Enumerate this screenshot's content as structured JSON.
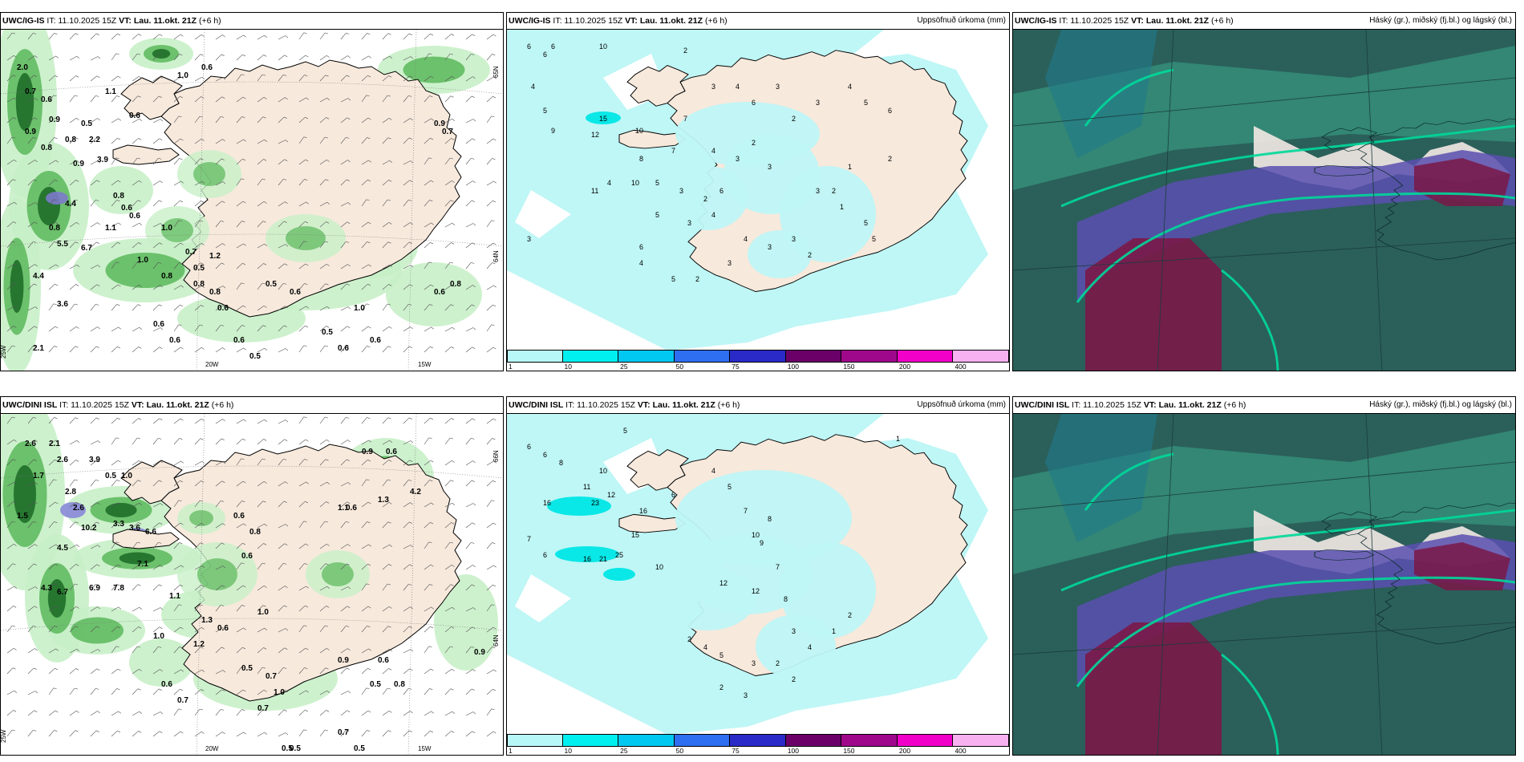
{
  "panels": [
    {
      "id": "p1",
      "model": "UWC/IG-IS",
      "it_label": "IT: 11.10.2025 15Z",
      "vt_prefix": "VT:",
      "vt_value": "Lau. 11.okt. 21Z",
      "lead": "(+6 h)",
      "right_title": "",
      "lon_labels": [
        "20W",
        "15W",
        "25W"
      ],
      "lat_labels": [
        "65N",
        "64N"
      ],
      "precip_values": [
        "2.0",
        "0.7",
        "0.6",
        "0.9",
        "0.9",
        "0.8",
        "0.8",
        "0.5",
        "2.2",
        "0.9",
        "3.9",
        "0.6",
        "0.8",
        "5.5",
        "6.7",
        "1.1",
        "4.4",
        "3.6",
        "2.1",
        "4.4",
        "0.8",
        "0.6",
        "0.6",
        "1.0",
        "0.8",
        "0.7",
        "0.6",
        "0.6",
        "1.2",
        "1.0",
        "0.5",
        "0.8",
        "0.8",
        "0.6",
        "0.5",
        "0.6",
        "1.0",
        "0.5",
        "0.6",
        "0.6",
        "0.6",
        "0.5",
        "0.9",
        "0.7",
        "1.0",
        "0.6",
        "0.6",
        "0.8",
        "1.1"
      ]
    },
    {
      "id": "p2",
      "model": "UWC/IG-IS",
      "it_label": "IT: 11.10.2025 15Z",
      "vt_prefix": "VT:",
      "vt_value": "Lau. 11.okt. 21Z",
      "lead": "(+6 h)",
      "right_title": "Uppsöfnuð úrkoma (mm)",
      "precip_values": [
        "6",
        "6",
        "6",
        "4",
        "10",
        "2",
        "5",
        "12",
        "15",
        "9",
        "10",
        "8",
        "7",
        "3",
        "4",
        "6",
        "3",
        "2",
        "3",
        "4",
        "5",
        "6",
        "7",
        "4",
        "3",
        "2",
        "3",
        "10",
        "11",
        "4",
        "5",
        "3",
        "2",
        "6",
        "5",
        "3",
        "4",
        "6",
        "4",
        "5",
        "2",
        "3",
        "4",
        "3",
        "3",
        "2",
        "1",
        "5",
        "5",
        "3",
        "2",
        "1",
        "2",
        "3"
      ]
    },
    {
      "id": "p3",
      "model": "UWC/IG-IS",
      "it_label": "IT: 11.10.2025 15Z",
      "vt_prefix": "VT:",
      "vt_value": "Lau. 11.okt. 21Z",
      "lead": "(+6 h)",
      "right_title": "Háský (gr.), miðský (fj.bl.) og lágský (bl.)"
    },
    {
      "id": "p4",
      "model": "UWC/DINI ISL",
      "it_label": "IT: 11.10.2025 15Z",
      "vt_prefix": "VT:",
      "vt_value": "Lau. 11.okt. 21Z",
      "lead": "(+6 h)",
      "right_title": "",
      "lon_labels": [
        "20W",
        "15W",
        "25W"
      ],
      "lat_labels": [
        "66N",
        "64N"
      ],
      "precip_values": [
        "2.6",
        "2.1",
        "2.6",
        "3.9",
        "0.5",
        "1.0",
        "1.7",
        "2.8",
        "1.5",
        "2.6",
        "10.2",
        "3.3",
        "3.6",
        "6.6",
        "4.5",
        "7.1",
        "4.3",
        "6.7",
        "6.9",
        "7.8",
        "0.9",
        "0.6",
        "1.3",
        "4.2",
        "1.1",
        "0.6",
        "0.8",
        "0.6",
        "0.6",
        "1.1",
        "1.3",
        "1.2",
        "0.6",
        "1.0",
        "1.0",
        "0.6",
        "0.7",
        "1.0",
        "0.7",
        "0.5",
        "0.9",
        "0.6",
        "0.8",
        "0.5",
        "0.7",
        "0.5",
        "0.5",
        "0.7",
        "0.5",
        "0.9"
      ]
    },
    {
      "id": "p5",
      "model": "UWC/DINI ISL",
      "it_label": "IT: 11.10.2025 15Z",
      "vt_prefix": "VT:",
      "vt_value": "Lau. 11.okt. 21Z",
      "lead": "(+6 h)",
      "right_title": "Uppsöfnuð úrkoma (mm)",
      "precip_values": [
        "5",
        "6",
        "6",
        "8",
        "11",
        "10",
        "16",
        "23",
        "12",
        "16",
        "15",
        "7",
        "6",
        "16",
        "21",
        "25",
        "10",
        "12",
        "10",
        "6",
        "4",
        "5",
        "7",
        "8",
        "12",
        "9",
        "7",
        "8",
        "2",
        "4",
        "5",
        "3",
        "2",
        "3",
        "4",
        "1",
        "2",
        "2",
        "3",
        "2",
        "1"
      ]
    },
    {
      "id": "p6",
      "model": "UWC/DINI ISL",
      "it_label": "IT: 11.10.2025 15Z",
      "vt_prefix": "VT:",
      "vt_value": "Lau. 11.okt. 21Z",
      "lead": "(+6 h)",
      "right_title": "Háský (gr.), miðský (fj.bl.) og lágský (bl.)"
    }
  ],
  "colorbar": {
    "ticks": [
      "1",
      "10",
      "25",
      "50",
      "75",
      "100",
      "150",
      "200",
      "400"
    ],
    "colors": [
      "#b8f7f7",
      "#00f0f0",
      "#00c8f0",
      "#2e6ef0",
      "#2a2ac8",
      "#6a0068",
      "#a0088c",
      "#f000c8",
      "#f7b0f0"
    ]
  },
  "colors": {
    "land": "#f7e9dc",
    "sea": "#ffffff",
    "precip_light": "#c8f0c8",
    "precip_mid": "#5ab85a",
    "precip_dark": "#1f6e2a",
    "accum_light": "#bff6f6",
    "cloud_base": "#2b5f5a",
    "cloud_high": "#3aa78a",
    "cloud_mid": "#5a4fb0",
    "cloud_low": "#7a1848",
    "cloud_edge": "#00d99a"
  }
}
